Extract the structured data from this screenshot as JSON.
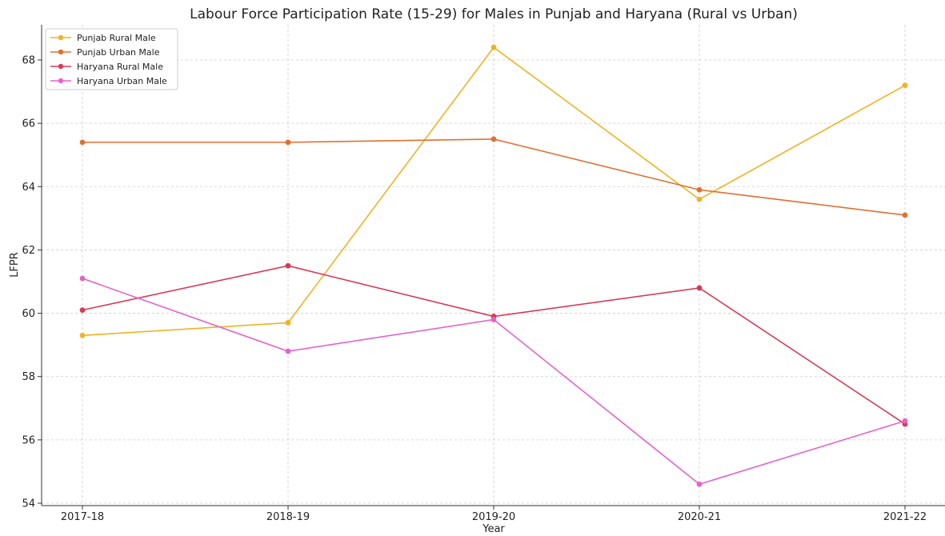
{
  "chart_data": {
    "type": "line",
    "title": "Labour Force Participation Rate (15-29) for Males in Punjab and Haryana (Rural vs Urban)",
    "xlabel": "Year",
    "ylabel": "LFPR",
    "categories": [
      "2017-18",
      "2018-19",
      "2019-20",
      "2020-21",
      "2021-22"
    ],
    "ylim": [
      54,
      69
    ],
    "yticks": [
      54,
      56,
      58,
      60,
      62,
      64,
      66,
      68
    ],
    "grid": true,
    "legend_position": "top-left",
    "series": [
      {
        "name": "Punjab Rural Male",
        "color": "#f0b323",
        "values": [
          59.3,
          59.7,
          68.4,
          63.6,
          67.2
        ]
      },
      {
        "name": "Punjab Urban Male",
        "color": "#e07030",
        "values": [
          65.4,
          65.4,
          65.5,
          63.9,
          63.1
        ]
      },
      {
        "name": "Haryana Rural Male",
        "color": "#d73a55",
        "values": [
          60.1,
          61.5,
          59.9,
          60.8,
          56.5
        ]
      },
      {
        "name": "Haryana Urban Male",
        "color": "#e563c9",
        "values": [
          61.1,
          58.8,
          59.8,
          54.6,
          56.6
        ]
      }
    ]
  }
}
